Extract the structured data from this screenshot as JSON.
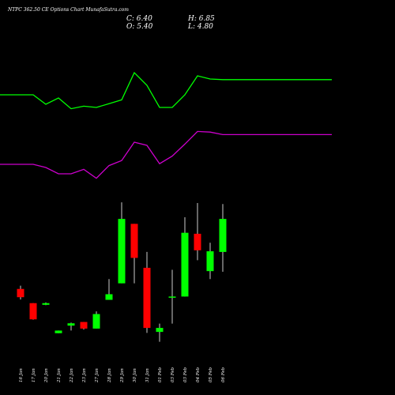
{
  "chart_data": {
    "type": "candlestick",
    "title": "NTPC 362.50 CE Options Chart MunafaSutra.com",
    "ohlc": {
      "open_label": "O: 5.40",
      "high_label": "H: 6.85",
      "close_label": "C: 6.40",
      "low_label": "L: 4.80"
    },
    "categories": [
      "16 Jan",
      "17 Jan",
      "20 Jan",
      "21 Jan",
      "22 Jan",
      "23 Jan",
      "27 Jan",
      "28 Jan",
      "29 Jan",
      "30 Jan",
      "31 Jan",
      "01 Feb",
      "03 Feb",
      "03 Feb",
      "04 Feb",
      "05 Feb",
      "06 Feb"
    ],
    "candles": [
      {
        "open": 4.28,
        "high": 4.38,
        "low": 3.96,
        "close": 4.03,
        "direction": "down"
      },
      {
        "open": 3.85,
        "high": 3.85,
        "low": 3.35,
        "close": 3.36,
        "direction": "down"
      },
      {
        "open": 3.85,
        "high": 3.87,
        "low": 3.79,
        "close": 3.8,
        "direction": "up"
      },
      {
        "open": 2.94,
        "high": 3.02,
        "low": 2.94,
        "close": 3.02,
        "direction": "up"
      },
      {
        "open": 3.17,
        "high": 3.26,
        "low": 3.02,
        "close": 3.24,
        "direction": "up"
      },
      {
        "open": 3.28,
        "high": 3.28,
        "low": 3.05,
        "close": 3.08,
        "direction": "down"
      },
      {
        "open": 3.08,
        "high": 3.6,
        "low": 3.08,
        "close": 3.52,
        "direction": "up"
      },
      {
        "open": 3.95,
        "high": 4.58,
        "low": 3.95,
        "close": 4.12,
        "direction": "up"
      },
      {
        "open": 4.45,
        "high": 6.9,
        "low": 4.45,
        "close": 6.4,
        "direction": "up"
      },
      {
        "open": 6.25,
        "high": 6.25,
        "low": 4.45,
        "close": 5.22,
        "direction": "down"
      },
      {
        "open": 4.92,
        "high": 5.4,
        "low": 2.95,
        "close": 3.1,
        "direction": "down"
      },
      {
        "open": 3.1,
        "high": 3.23,
        "low": 2.68,
        "close": 2.98,
        "direction": "up"
      },
      {
        "open": 4.05,
        "high": 4.86,
        "low": 3.23,
        "close": 4.05,
        "direction": "up"
      },
      {
        "open": 4.05,
        "high": 6.45,
        "low": 4.05,
        "close": 5.98,
        "direction": "up"
      },
      {
        "open": 5.95,
        "high": 6.88,
        "low": 5.15,
        "close": 5.45,
        "direction": "down"
      },
      {
        "open": 4.82,
        "high": 5.68,
        "low": 4.58,
        "close": 5.42,
        "direction": "up"
      },
      {
        "open": 5.4,
        "high": 6.85,
        "low": 4.8,
        "close": 6.4,
        "direction": "up"
      }
    ],
    "series": [
      {
        "values": [
          7.0,
          7.0,
          6.85,
          6.95,
          6.78,
          6.82,
          6.8,
          6.86,
          6.92,
          7.35,
          7.15,
          6.8,
          6.8,
          7.0,
          7.3,
          7.25,
          7.24
        ],
        "color": "#00ff00"
      },
      {
        "values": [
          5.9,
          5.9,
          5.85,
          5.75,
          5.75,
          5.82,
          5.68,
          5.88,
          5.96,
          6.25,
          6.2,
          5.91,
          6.03,
          6.22,
          6.42,
          6.41,
          6.37
        ],
        "color": "#cc00cc"
      }
    ],
    "up_color": "#00ff00",
    "down_color": "#ff0000",
    "wick_color": "#ffffff",
    "background": "#000000",
    "grid": false
  }
}
